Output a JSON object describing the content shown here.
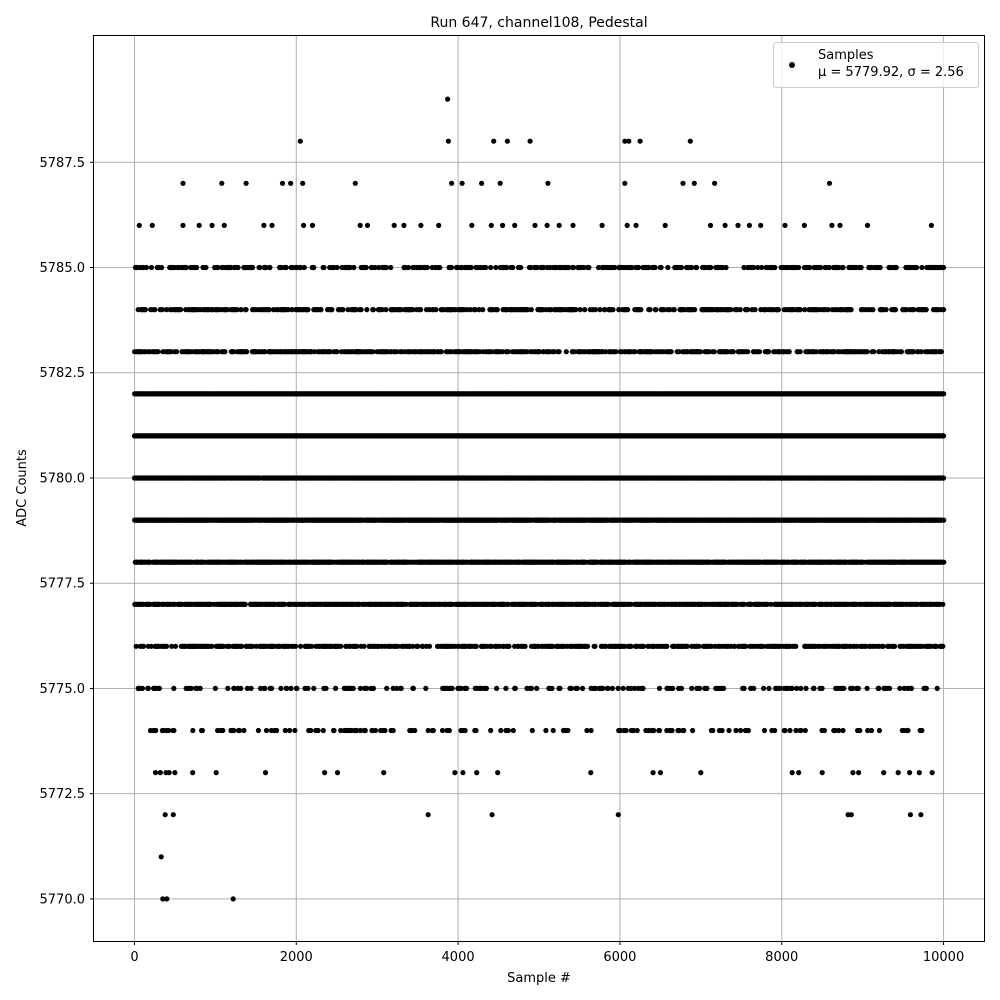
{
  "chart_data": {
    "type": "scatter",
    "title": "Run 647, channel108, Pedestal",
    "xlabel": "Sample #",
    "ylabel": "ADC Counts",
    "xlim": [
      -500,
      10500
    ],
    "ylim": [
      5769.0,
      5790.5
    ],
    "x_ticks": [
      0,
      2000,
      4000,
      6000,
      8000,
      10000
    ],
    "x_tick_labels": [
      "0",
      "2000",
      "4000",
      "6000",
      "8000",
      "10000"
    ],
    "y_ticks": [
      5770.0,
      5772.5,
      5775.0,
      5777.5,
      5780.0,
      5782.5,
      5785.0,
      5787.5
    ],
    "y_tick_labels": [
      "5770.0",
      "5772.5",
      "5775.0",
      "5777.5",
      "5780.0",
      "5782.5",
      "5785.0",
      "5787.5"
    ],
    "grid": true,
    "legend_position": "top-right",
    "marker_color": "#000000",
    "series": [
      {
        "name": "Samples",
        "stats": "μ = 5779.92, σ = 2.56",
        "points": [
          [
            60,
            5786
          ],
          [
            220,
            5786
          ],
          [
            600,
            5787
          ],
          [
            1080,
            5787
          ],
          [
            1380,
            5787
          ],
          [
            1830,
            5787
          ],
          [
            1930,
            5787
          ],
          [
            2080,
            5787
          ],
          [
            2050,
            5788
          ],
          [
            2730,
            5787
          ],
          [
            3870,
            5789
          ],
          [
            3880,
            5788
          ],
          [
            3920,
            5787
          ],
          [
            4050,
            5787
          ],
          [
            4290,
            5787
          ],
          [
            4440,
            5788
          ],
          [
            4520,
            5787
          ],
          [
            4610,
            5788
          ],
          [
            4890,
            5788
          ],
          [
            5110,
            5787
          ],
          [
            6060,
            5788
          ],
          [
            6110,
            5788
          ],
          [
            6250,
            5788
          ],
          [
            6060,
            5787
          ],
          [
            6780,
            5787
          ],
          [
            6870,
            5788
          ],
          [
            6920,
            5787
          ],
          [
            7170,
            5787
          ],
          [
            8590,
            5787
          ],
          [
            600,
            5786
          ],
          [
            800,
            5786
          ],
          [
            960,
            5786
          ],
          [
            1110,
            5786
          ],
          [
            1600,
            5786
          ],
          [
            1700,
            5786
          ],
          [
            2090,
            5786
          ],
          [
            2200,
            5786
          ],
          [
            2790,
            5786
          ],
          [
            2880,
            5786
          ],
          [
            3210,
            5786
          ],
          [
            3330,
            5786
          ],
          [
            3540,
            5786
          ],
          [
            3760,
            5786
          ],
          [
            4170,
            5786
          ],
          [
            4410,
            5786
          ],
          [
            4550,
            5786
          ],
          [
            4700,
            5786
          ],
          [
            4950,
            5786
          ],
          [
            5100,
            5786
          ],
          [
            5250,
            5786
          ],
          [
            5420,
            5786
          ],
          [
            5780,
            5786
          ],
          [
            6090,
            5786
          ],
          [
            6200,
            5786
          ],
          [
            6560,
            5786
          ],
          [
            7120,
            5786
          ],
          [
            7300,
            5786
          ],
          [
            7460,
            5786
          ],
          [
            7600,
            5786
          ],
          [
            7740,
            5786
          ],
          [
            8040,
            5786
          ],
          [
            8280,
            5786
          ],
          [
            8620,
            5786
          ],
          [
            8720,
            5786
          ],
          [
            9060,
            5786
          ],
          [
            9850,
            5786
          ],
          [
            350,
            5770
          ],
          [
            400,
            5770
          ],
          [
            1220,
            5770
          ],
          [
            330,
            5771
          ],
          [
            380,
            5772
          ],
          [
            480,
            5772
          ],
          [
            3630,
            5772
          ],
          [
            4420,
            5772
          ],
          [
            5980,
            5772
          ],
          [
            8820,
            5772
          ],
          [
            8860,
            5772
          ],
          [
            9590,
            5772
          ],
          [
            9720,
            5772
          ],
          [
            260,
            5773
          ],
          [
            320,
            5773
          ],
          [
            390,
            5773
          ],
          [
            430,
            5773
          ],
          [
            500,
            5773
          ],
          [
            720,
            5773
          ],
          [
            1010,
            5773
          ],
          [
            1620,
            5773
          ],
          [
            2350,
            5773
          ],
          [
            2510,
            5773
          ],
          [
            3080,
            5773
          ],
          [
            3960,
            5773
          ],
          [
            4060,
            5773
          ],
          [
            4230,
            5773
          ],
          [
            4490,
            5773
          ],
          [
            5640,
            5773
          ],
          [
            6410,
            5773
          ],
          [
            6500,
            5773
          ],
          [
            7000,
            5773
          ],
          [
            8130,
            5773
          ],
          [
            8210,
            5773
          ],
          [
            8500,
            5773
          ],
          [
            8880,
            5773
          ],
          [
            8950,
            5773
          ],
          [
            9260,
            5773
          ],
          [
            9440,
            5773
          ],
          [
            9580,
            5773
          ],
          [
            9700,
            5773
          ],
          [
            9860,
            5773
          ]
        ],
        "dense_levels": [
          {
            "value": 5782.0,
            "density": 1.0
          },
          {
            "value": 5781.0,
            "density": 1.0
          },
          {
            "value": 5780.0,
            "density": 0.95
          },
          {
            "value": 5779.0,
            "density": 0.9
          },
          {
            "value": 5778.0,
            "density": 0.8
          },
          {
            "value": 5777.0,
            "density": 0.65
          },
          {
            "value": 5783.0,
            "density": 0.45
          },
          {
            "value": 5776.0,
            "density": 0.4
          },
          {
            "value": 5784.0,
            "density": 0.35
          },
          {
            "value": 5785.0,
            "density": 0.28
          },
          {
            "value": 5775.0,
            "density": 0.18
          },
          {
            "value": 5774.0,
            "density": 0.12
          }
        ],
        "x_range": [
          0,
          10000
        ]
      }
    ]
  }
}
